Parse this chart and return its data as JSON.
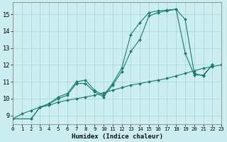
{
  "xlabel": "Humidex (Indice chaleur)",
  "bg_color": "#cceef0",
  "line_color": "#1a7a6e",
  "grid_color": "#aad8dc",
  "xlim": [
    0,
    23
  ],
  "ylim": [
    8.5,
    15.7
  ],
  "xticks": [
    0,
    1,
    2,
    3,
    4,
    5,
    6,
    7,
    8,
    9,
    10,
    11,
    12,
    13,
    14,
    15,
    16,
    17,
    18,
    19,
    20,
    21,
    22,
    23
  ],
  "yticks": [
    9,
    10,
    11,
    12,
    13,
    14,
    15
  ],
  "line1_x": [
    0,
    1,
    2,
    3,
    4,
    5,
    6,
    7,
    8,
    9,
    10,
    11,
    12,
    13,
    14,
    15,
    16,
    17,
    18,
    19,
    20,
    21,
    22,
    23
  ],
  "line1_y": [
    8.8,
    9.1,
    9.3,
    9.5,
    9.6,
    9.8,
    9.9,
    10.0,
    10.1,
    10.2,
    10.35,
    10.5,
    10.65,
    10.8,
    10.9,
    11.0,
    11.1,
    11.2,
    11.35,
    11.5,
    11.65,
    11.8,
    11.9,
    12.0
  ],
  "line2_x": [
    0,
    2,
    3,
    4,
    5,
    6,
    7,
    8,
    9,
    10,
    11,
    12,
    13,
    14,
    15,
    16,
    17,
    18,
    19,
    20,
    21,
    22
  ],
  "line2_y": [
    8.8,
    8.8,
    9.5,
    9.7,
    10.1,
    10.3,
    11.0,
    11.1,
    10.5,
    10.2,
    10.9,
    11.8,
    13.8,
    14.5,
    15.1,
    15.2,
    15.25,
    15.3,
    14.7,
    11.5,
    11.35,
    12.0
  ],
  "line3_x": [
    0,
    2,
    3,
    4,
    5,
    6,
    7,
    8,
    9,
    10,
    11,
    12,
    13,
    14,
    15,
    16,
    17,
    18,
    19,
    20,
    21,
    22
  ],
  "line3_y": [
    8.8,
    8.8,
    9.5,
    9.7,
    10.0,
    10.2,
    10.9,
    10.9,
    10.4,
    10.1,
    10.8,
    11.6,
    12.8,
    13.5,
    14.9,
    15.1,
    15.2,
    15.3,
    12.7,
    11.4,
    11.4,
    12.0
  ]
}
